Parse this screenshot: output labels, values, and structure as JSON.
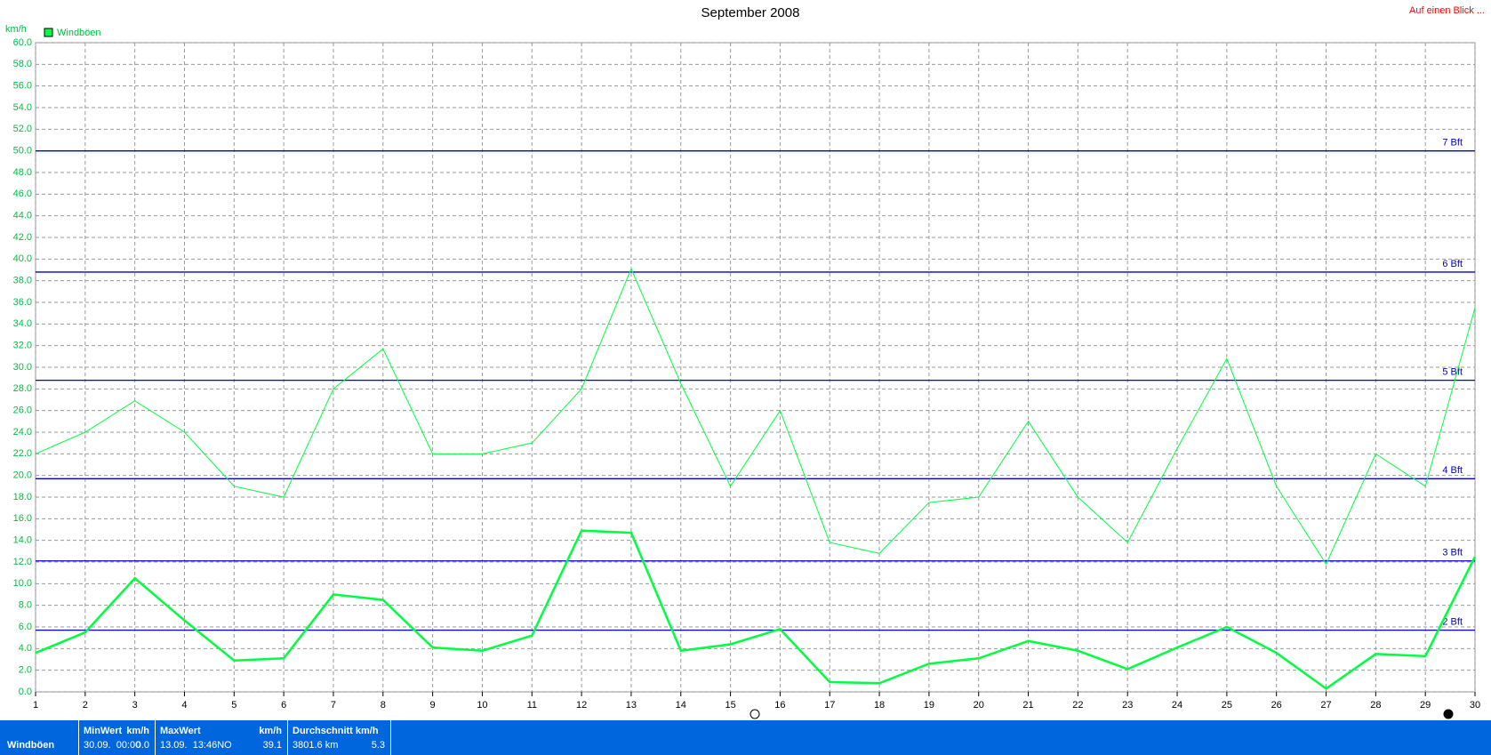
{
  "chart_data": {
    "type": "line",
    "title": "September 2008",
    "y_label": "km/h",
    "link": "Auf einen Blick ...",
    "x": [
      1,
      2,
      3,
      4,
      5,
      6,
      7,
      8,
      9,
      10,
      11,
      12,
      13,
      14,
      15,
      16,
      17,
      18,
      19,
      20,
      21,
      22,
      23,
      24,
      25,
      26,
      27,
      28,
      29,
      30
    ],
    "xlim": [
      1,
      30
    ],
    "xticks": [
      1,
      2,
      3,
      4,
      5,
      6,
      7,
      8,
      9,
      10,
      11,
      12,
      13,
      14,
      15,
      16,
      17,
      18,
      19,
      20,
      21,
      22,
      23,
      24,
      25,
      26,
      27,
      28,
      29,
      30
    ],
    "ylim": [
      0,
      60
    ],
    "yticks": [
      {
        "value": 0,
        "label": "0.0"
      },
      {
        "value": 2,
        "label": "2.0"
      },
      {
        "value": 4,
        "label": "4.0"
      },
      {
        "value": 6,
        "label": "6.0"
      },
      {
        "value": 8,
        "label": "8.0"
      },
      {
        "value": 10,
        "label": "10.0"
      },
      {
        "value": 12,
        "label": "12.0"
      },
      {
        "value": 14,
        "label": "14.0"
      },
      {
        "value": 16,
        "label": "16.0"
      },
      {
        "value": 18,
        "label": "18.0"
      },
      {
        "value": 20,
        "label": "20.0"
      },
      {
        "value": 22,
        "label": "22.0"
      },
      {
        "value": 24,
        "label": "24.0"
      },
      {
        "value": 26,
        "label": "26.0"
      },
      {
        "value": 28,
        "label": "28.0"
      },
      {
        "value": 30,
        "label": "30.0"
      },
      {
        "value": 32,
        "label": "32.0"
      },
      {
        "value": 34,
        "label": "34.0"
      },
      {
        "value": 36,
        "label": "36.0"
      },
      {
        "value": 38,
        "label": "38.0"
      },
      {
        "value": 40,
        "label": "40.0"
      },
      {
        "value": 42,
        "label": "42.0"
      },
      {
        "value": 44,
        "label": "44.0"
      },
      {
        "value": 46,
        "label": "46.0"
      },
      {
        "value": 48,
        "label": "48.0"
      },
      {
        "value": 50,
        "label": "50.0"
      },
      {
        "value": 52,
        "label": "52.0"
      },
      {
        "value": 54,
        "label": "54.0"
      },
      {
        "value": 56,
        "label": "56.0"
      },
      {
        "value": 58,
        "label": "58.0"
      },
      {
        "value": 60,
        "label": "60.0"
      }
    ],
    "grid": true,
    "reference_lines": [
      {
        "value": 5.7,
        "label": "2 Bft"
      },
      {
        "value": 12.1,
        "label": "3 Bft"
      },
      {
        "value": 19.7,
        "label": "4 Bft"
      },
      {
        "value": 28.8,
        "label": "5 Bft"
      },
      {
        "value": 38.8,
        "label": "6 Bft"
      },
      {
        "value": 50,
        "label": "7 Bft"
      }
    ],
    "reference_color": "#0000c8",
    "series": [
      {
        "name": "Windböen",
        "color": "#00ff40",
        "width": 1,
        "values": [
          22,
          24,
          26.9,
          24,
          19,
          18,
          28,
          31.7,
          22,
          22,
          23,
          28,
          39.1,
          28.5,
          19,
          26,
          13.8,
          12.8,
          17.5,
          18,
          25,
          18,
          13.8,
          22.5,
          30.8,
          19,
          11.8,
          22,
          19,
          35.5
        ]
      },
      {
        "color": "#00ff40",
        "width": 2.5,
        "values": [
          3.6,
          5.5,
          10.5,
          6.6,
          2.9,
          3.1,
          9,
          8.5,
          4.1,
          3.8,
          5.2,
          14.9,
          14.7,
          3.8,
          4.4,
          5.8,
          0.9,
          0.8,
          2.6,
          3.1,
          4.7,
          3.8,
          2.1,
          4.1,
          6,
          3.6,
          0.3,
          3.5,
          3.3,
          12.5
        ]
      }
    ],
    "summary": {
      "label": "Windböen",
      "cells": [
        {
          "head": [
            "MinWert",
            "km/h"
          ],
          "body": [
            "30.09.  00:00",
            "0.0"
          ]
        },
        {
          "head": [
            "MaxWert",
            "km/h"
          ],
          "body": [
            "13.09.  13:46NO",
            "39.1"
          ]
        },
        {
          "head": [
            "Durchschnitt km/h"
          ],
          "body": [
            "3801.6 km",
            "5.3"
          ]
        }
      ]
    }
  }
}
